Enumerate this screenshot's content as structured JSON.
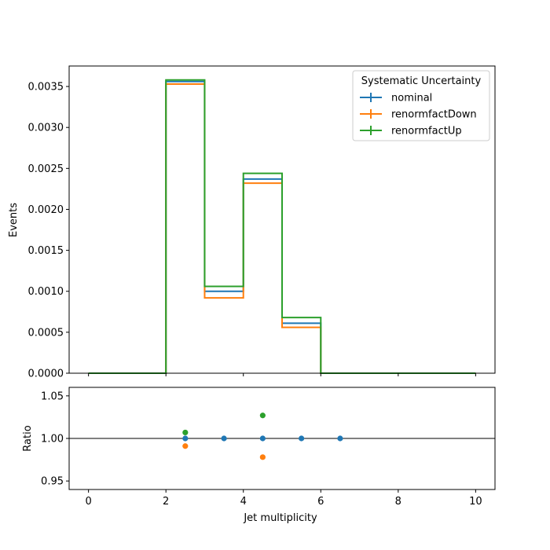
{
  "chart_data": [
    {
      "type": "step",
      "xlabel": "",
      "ylabel": "Events",
      "xlim": [
        -0.5,
        10.5
      ],
      "ylim": [
        0,
        0.00375
      ],
      "x_ticks": [
        0,
        2,
        4,
        6,
        8,
        10
      ],
      "y_ticks": [
        "0.0000",
        "0.0005",
        "0.0010",
        "0.0015",
        "0.0020",
        "0.0025",
        "0.0030",
        "0.0035"
      ],
      "bin_edges": [
        0,
        1,
        2,
        3,
        4,
        5,
        6,
        7,
        8,
        9,
        10
      ],
      "legend": {
        "title": "Systematic Uncertainty",
        "placement": "top-right"
      },
      "series": [
        {
          "name": "nominal",
          "color": "#1f77b4",
          "values": [
            0,
            0,
            0.00356,
            0.001,
            0.00237,
            0.00061,
            0,
            0,
            0,
            0
          ]
        },
        {
          "name": "renormfactDown",
          "color": "#ff7f0e",
          "values": [
            0,
            0,
            0.00353,
            0.00092,
            0.00232,
            0.00056,
            0,
            0,
            0,
            0
          ]
        },
        {
          "name": "renormfactUp",
          "color": "#2ca02c",
          "values": [
            0,
            0,
            0.00358,
            0.00106,
            0.00244,
            0.00068,
            0,
            0,
            0,
            0
          ]
        }
      ]
    },
    {
      "type": "scatter",
      "xlabel": "Jet multiplicity",
      "ylabel": "Ratio",
      "xlim": [
        -0.5,
        10.5
      ],
      "ylim": [
        0.94,
        1.06
      ],
      "x_ticks": [
        0,
        2,
        4,
        6,
        8,
        10
      ],
      "y_ticks": [
        "0.95",
        "1.00",
        "1.05"
      ],
      "reference_line": 1.0,
      "series": [
        {
          "name": "nominal",
          "color": "#1f77b4",
          "points": [
            [
              2.5,
              1.0
            ],
            [
              3.5,
              1.0
            ],
            [
              4.5,
              1.0
            ],
            [
              5.5,
              1.0
            ],
            [
              6.5,
              1.0
            ]
          ]
        },
        {
          "name": "renormfactDown",
          "color": "#ff7f0e",
          "points": [
            [
              2.5,
              0.991
            ],
            [
              4.5,
              0.978
            ]
          ]
        },
        {
          "name": "renormfactUp",
          "color": "#2ca02c",
          "points": [
            [
              2.5,
              1.007
            ],
            [
              4.5,
              1.027
            ]
          ]
        }
      ]
    }
  ]
}
